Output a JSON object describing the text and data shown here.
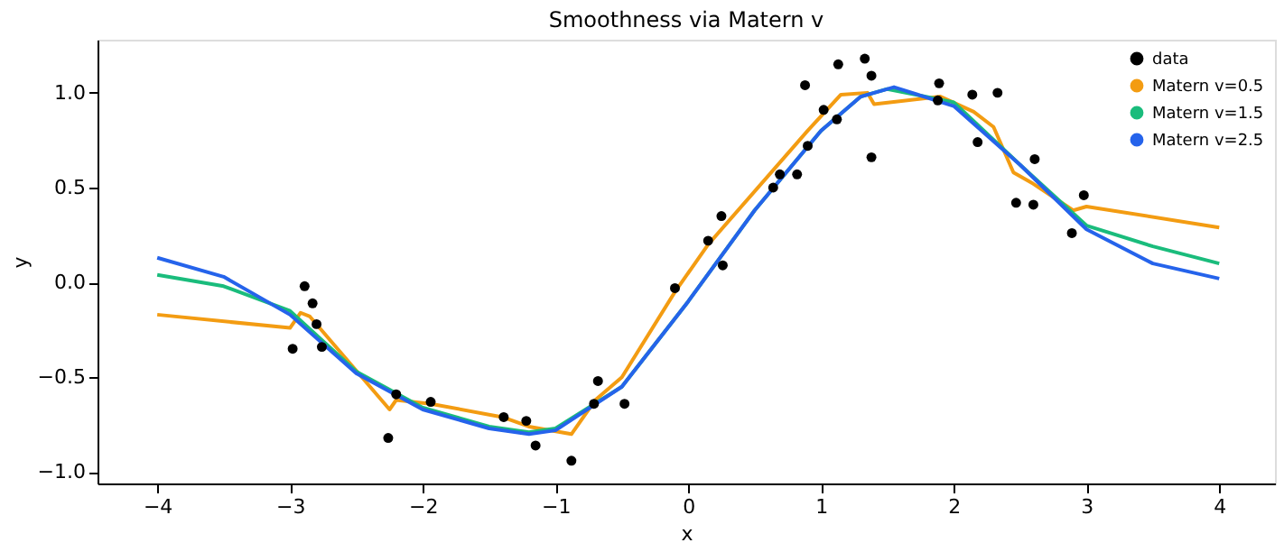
{
  "chart_data": {
    "type": "line",
    "title": "Smoothness via Matern v",
    "xlabel": "x",
    "ylabel": "y",
    "xlim": [
      -4.45,
      4.42
    ],
    "ylim": [
      -1.06,
      1.28
    ],
    "xticks": [
      {
        "value": -4,
        "label": "−4"
      },
      {
        "value": -3,
        "label": "−3"
      },
      {
        "value": -2,
        "label": "−2"
      },
      {
        "value": -1,
        "label": "−1"
      },
      0,
      1,
      2,
      3,
      4
    ],
    "yticks": [
      {
        "value": -1,
        "label": "−1.0"
      },
      {
        "value": -0.5,
        "label": "−0.5"
      },
      {
        "value": 0,
        "label": "0.0"
      },
      {
        "value": 0.5,
        "label": "0.5"
      },
      {
        "value": 1,
        "label": "1.0"
      }
    ],
    "grid": false,
    "legend": "top right",
    "series": [
      {
        "name": "data",
        "type": "scatter",
        "marker": "circle",
        "color": "#000000",
        "x": [
          -2.98,
          -2.89,
          -2.83,
          -2.8,
          -2.76,
          -2.26,
          -2.2,
          -1.94,
          -1.39,
          -1.22,
          -1.15,
          -0.88,
          -0.71,
          -0.68,
          -0.48,
          -0.1,
          0.15,
          0.25,
          0.26,
          0.64,
          0.69,
          0.82,
          0.88,
          0.9,
          1.02,
          1.12,
          1.13,
          1.33,
          1.38,
          1.38,
          1.89,
          1.88,
          2.14,
          2.18,
          2.33,
          2.47,
          2.6,
          2.61,
          2.89,
          2.98
        ],
        "values": [
          -0.35,
          -0.02,
          -0.11,
          -0.22,
          -0.34,
          -0.82,
          -0.59,
          -0.63,
          -0.71,
          -0.73,
          -0.86,
          -0.94,
          -0.64,
          -0.52,
          -0.64,
          -0.03,
          0.22,
          0.35,
          0.09,
          0.5,
          0.57,
          0.57,
          1.04,
          0.72,
          0.91,
          0.86,
          1.15,
          1.18,
          1.09,
          0.66,
          1.05,
          0.96,
          0.99,
          0.74,
          1.0,
          0.42,
          0.41,
          0.65,
          0.26,
          0.46
        ]
      },
      {
        "name": "Matern v=0.5",
        "color": "#f39c12",
        "x": [
          -4,
          -3.0,
          -2.92,
          -2.85,
          -2.25,
          -2.2,
          -1.94,
          -1.4,
          -1.2,
          -0.88,
          -0.7,
          -0.5,
          -0.1,
          0.15,
          0.9,
          1.15,
          1.35,
          1.4,
          1.9,
          2.15,
          2.3,
          2.45,
          2.6,
          2.9,
          3.0,
          4.0
        ],
        "values": [
          -0.17,
          -0.24,
          -0.16,
          -0.18,
          -0.67,
          -0.62,
          -0.64,
          -0.71,
          -0.76,
          -0.8,
          -0.62,
          -0.5,
          -0.05,
          0.2,
          0.8,
          0.99,
          1.0,
          0.94,
          0.98,
          0.9,
          0.82,
          0.58,
          0.52,
          0.38,
          0.4,
          0.29
        ]
      },
      {
        "name": "Matern v=1.5",
        "color": "#1abc7c",
        "x": [
          -4,
          -3.5,
          -3,
          -2.5,
          -2,
          -1.5,
          -1.2,
          -1,
          -0.5,
          0,
          0.5,
          1,
          1.3,
          1.5,
          2,
          2.5,
          3,
          3.5,
          4
        ],
        "values": [
          0.04,
          -0.02,
          -0.15,
          -0.47,
          -0.66,
          -0.76,
          -0.79,
          -0.77,
          -0.55,
          -0.1,
          0.38,
          0.8,
          0.98,
          1.02,
          0.95,
          0.62,
          0.3,
          0.19,
          0.1
        ]
      },
      {
        "name": "Matern v=2.5",
        "color": "#2563eb",
        "x": [
          -4,
          -3.5,
          -3,
          -2.5,
          -2,
          -1.5,
          -1.2,
          -1,
          -0.5,
          0,
          0.5,
          1,
          1.3,
          1.55,
          2,
          2.5,
          3,
          3.5,
          4
        ],
        "values": [
          0.13,
          0.03,
          -0.17,
          -0.48,
          -0.67,
          -0.77,
          -0.8,
          -0.78,
          -0.55,
          -0.1,
          0.38,
          0.8,
          0.98,
          1.03,
          0.93,
          0.62,
          0.28,
          0.1,
          0.02
        ]
      }
    ]
  }
}
